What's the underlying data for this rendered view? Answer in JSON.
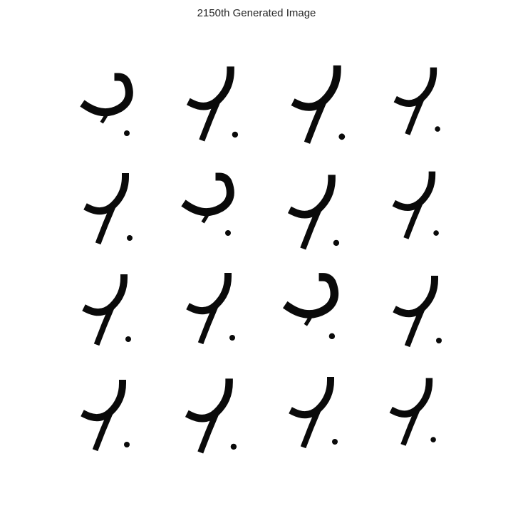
{
  "figure": {
    "title": "2150th Generated Image"
  },
  "grid": {
    "rows": 4,
    "cols": 4,
    "tiles": [
      {
        "id": "r1c1",
        "shape": "curve-hook",
        "ink": "#0a0a0a"
      },
      {
        "id": "r1c2",
        "shape": "seven-stroke",
        "ink": "#0a0a0a"
      },
      {
        "id": "r1c3",
        "shape": "seven-stroke",
        "ink": "#0a0a0a"
      },
      {
        "id": "r1c4",
        "shape": "seven-stroke",
        "ink": "#0a0a0a"
      },
      {
        "id": "r2c1",
        "shape": "seven-stroke",
        "ink": "#0a0a0a"
      },
      {
        "id": "r2c2",
        "shape": "curve-hook",
        "ink": "#0a0a0a"
      },
      {
        "id": "r2c3",
        "shape": "seven-stroke",
        "ink": "#0a0a0a"
      },
      {
        "id": "r2c4",
        "shape": "seven-stroke",
        "ink": "#0a0a0a"
      },
      {
        "id": "r3c1",
        "shape": "seven-stroke",
        "ink": "#0a0a0a"
      },
      {
        "id": "r3c2",
        "shape": "seven-stroke",
        "ink": "#0a0a0a"
      },
      {
        "id": "r3c3",
        "shape": "curve-hook",
        "ink": "#0a0a0a"
      },
      {
        "id": "r3c4",
        "shape": "seven-stroke",
        "ink": "#0a0a0a"
      },
      {
        "id": "r4c1",
        "shape": "seven-stroke",
        "ink": "#0a0a0a"
      },
      {
        "id": "r4c2",
        "shape": "seven-stroke",
        "ink": "#0a0a0a"
      },
      {
        "id": "r4c3",
        "shape": "seven-stroke",
        "ink": "#0a0a0a"
      },
      {
        "id": "r4c4",
        "shape": "seven-stroke",
        "ink": "#0a0a0a"
      }
    ]
  }
}
